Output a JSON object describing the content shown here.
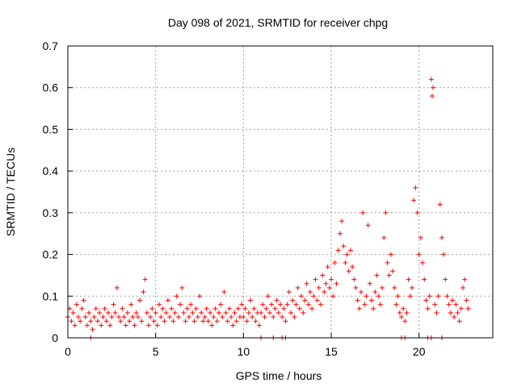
{
  "chart_data": {
    "type": "scatter",
    "title": "Day 098 of 2021, SRMTID for receiver chpg",
    "xlabel": "GPS time / hours",
    "ylabel": "SRMTID / TECUs",
    "xlim": [
      0,
      24.2
    ],
    "ylim": [
      0,
      0.7
    ],
    "x_ticks": [
      0,
      5,
      10,
      15,
      20
    ],
    "y_ticks": [
      0,
      0.1,
      0.2,
      0.3,
      0.4,
      0.5,
      0.6,
      0.7
    ],
    "x_tick_labels": [
      "0",
      "5",
      "10",
      "15",
      "20"
    ],
    "y_tick_labels": [
      "0",
      "0.1",
      "0.2",
      "0.3",
      "0.4",
      "0.5",
      "0.6",
      "0.7"
    ],
    "grid": true,
    "marker": "+",
    "color": "#ff0000",
    "series": [
      {
        "name": "SRMTID",
        "points": [
          [
            0.0,
            0.05
          ],
          [
            0.1,
            0.07
          ],
          [
            0.2,
            0.04
          ],
          [
            0.3,
            0.06
          ],
          [
            0.4,
            0.03
          ],
          [
            0.5,
            0.08
          ],
          [
            0.6,
            0.05
          ],
          [
            0.7,
            0.04
          ],
          [
            0.8,
            0.07
          ],
          [
            0.9,
            0.09
          ],
          [
            1.0,
            0.05
          ],
          [
            1.1,
            0.03
          ],
          [
            1.2,
            0.06
          ],
          [
            1.3,
            0.04
          ],
          [
            1.4,
            0.02
          ],
          [
            1.5,
            0.05
          ],
          [
            1.6,
            0.07
          ],
          [
            1.7,
            0.04
          ],
          [
            1.8,
            0.06
          ],
          [
            1.9,
            0.03
          ],
          [
            2.0,
            0.05
          ],
          [
            2.1,
            0.07
          ],
          [
            2.2,
            0.04
          ],
          [
            2.3,
            0.06
          ],
          [
            2.4,
            0.03
          ],
          [
            2.5,
            0.05
          ],
          [
            2.6,
            0.08
          ],
          [
            2.7,
            0.06
          ],
          [
            2.8,
            0.12
          ],
          [
            2.9,
            0.05
          ],
          [
            3.0,
            0.04
          ],
          [
            3.1,
            0.07
          ],
          [
            3.2,
            0.05
          ],
          [
            3.3,
            0.03
          ],
          [
            3.4,
            0.06
          ],
          [
            3.5,
            0.04
          ],
          [
            3.6,
            0.08
          ],
          [
            3.7,
            0.05
          ],
          [
            3.8,
            0.03
          ],
          [
            3.9,
            0.06
          ],
          [
            4.0,
            0.05
          ],
          [
            4.1,
            0.09
          ],
          [
            4.2,
            0.04
          ],
          [
            4.3,
            0.11
          ],
          [
            4.4,
            0.14
          ],
          [
            4.5,
            0.06
          ],
          [
            4.6,
            0.03
          ],
          [
            4.7,
            0.05
          ],
          [
            4.8,
            0.07
          ],
          [
            4.9,
            0.04
          ],
          [
            5.0,
            0.06
          ],
          [
            5.1,
            0.03
          ],
          [
            5.2,
            0.08
          ],
          [
            5.3,
            0.05
          ],
          [
            5.4,
            0.07
          ],
          [
            5.5,
            0.04
          ],
          [
            5.6,
            0.06
          ],
          [
            5.7,
            0.09
          ],
          [
            5.8,
            0.05
          ],
          [
            5.9,
            0.07
          ],
          [
            6.0,
            0.04
          ],
          [
            6.1,
            0.06
          ],
          [
            6.2,
            0.1
          ],
          [
            6.3,
            0.05
          ],
          [
            6.4,
            0.08
          ],
          [
            6.5,
            0.12
          ],
          [
            6.6,
            0.06
          ],
          [
            6.7,
            0.04
          ],
          [
            6.8,
            0.07
          ],
          [
            6.9,
            0.05
          ],
          [
            7.0,
            0.08
          ],
          [
            7.1,
            0.06
          ],
          [
            7.2,
            0.04
          ],
          [
            7.3,
            0.07
          ],
          [
            7.4,
            0.05
          ],
          [
            7.5,
            0.1
          ],
          [
            7.6,
            0.06
          ],
          [
            7.7,
            0.04
          ],
          [
            7.8,
            0.05
          ],
          [
            7.9,
            0.07
          ],
          [
            8.0,
            0.04
          ],
          [
            8.1,
            0.06
          ],
          [
            8.2,
            0.03
          ],
          [
            8.3,
            0.05
          ],
          [
            8.4,
            0.07
          ],
          [
            8.5,
            0.04
          ],
          [
            8.6,
            0.06
          ],
          [
            8.7,
            0.08
          ],
          [
            8.8,
            0.05
          ],
          [
            8.9,
            0.11
          ],
          [
            9.0,
            0.06
          ],
          [
            9.1,
            0.04
          ],
          [
            9.2,
            0.07
          ],
          [
            9.3,
            0.05
          ],
          [
            9.4,
            0.03
          ],
          [
            9.5,
            0.06
          ],
          [
            9.6,
            0.04
          ],
          [
            9.7,
            0.07
          ],
          [
            9.8,
            0.05
          ],
          [
            9.9,
            0.08
          ],
          [
            10.0,
            0.05
          ],
          [
            10.1,
            0.07
          ],
          [
            10.2,
            0.04
          ],
          [
            10.3,
            0.06
          ],
          [
            10.4,
            0.09
          ],
          [
            10.5,
            0.05
          ],
          [
            10.6,
            0.07
          ],
          [
            10.7,
            0.04
          ],
          [
            10.8,
            0.06
          ],
          [
            10.9,
            0.03
          ],
          [
            11.0,
            0.06
          ],
          [
            11.1,
            0.08
          ],
          [
            11.2,
            0.05
          ],
          [
            11.3,
            0.07
          ],
          [
            11.4,
            0.1
          ],
          [
            11.5,
            0.06
          ],
          [
            11.6,
            0.08
          ],
          [
            11.7,
            0.05
          ],
          [
            11.8,
            0.07
          ],
          [
            11.9,
            0.09
          ],
          [
            12.0,
            0.06
          ],
          [
            12.1,
            0.08
          ],
          [
            12.2,
            0.05
          ],
          [
            12.3,
            0.07
          ],
          [
            12.4,
            0.04
          ],
          [
            12.5,
            0.08
          ],
          [
            12.6,
            0.11
          ],
          [
            12.7,
            0.06
          ],
          [
            12.8,
            0.09
          ],
          [
            12.9,
            0.05
          ],
          [
            13.0,
            0.08
          ],
          [
            13.1,
            0.12
          ],
          [
            13.2,
            0.07
          ],
          [
            13.3,
            0.1
          ],
          [
            13.4,
            0.06
          ],
          [
            13.5,
            0.09
          ],
          [
            13.6,
            0.13
          ],
          [
            13.7,
            0.08
          ],
          [
            13.8,
            0.11
          ],
          [
            13.9,
            0.07
          ],
          [
            14.0,
            0.1
          ],
          [
            14.1,
            0.14
          ],
          [
            14.2,
            0.09
          ],
          [
            14.3,
            0.12
          ],
          [
            14.4,
            0.08
          ],
          [
            14.5,
            0.15
          ],
          [
            14.6,
            0.11
          ],
          [
            14.7,
            0.13
          ],
          [
            14.8,
            0.17
          ],
          [
            14.9,
            0.12
          ],
          [
            15.0,
            0.14
          ],
          [
            15.1,
            0.1
          ],
          [
            15.2,
            0.18
          ],
          [
            15.3,
            0.13
          ],
          [
            15.4,
            0.21
          ],
          [
            15.5,
            0.25
          ],
          [
            15.6,
            0.28
          ],
          [
            15.7,
            0.22
          ],
          [
            15.8,
            0.18
          ],
          [
            15.9,
            0.2
          ],
          [
            16.0,
            0.16
          ],
          [
            16.1,
            0.21
          ],
          [
            16.2,
            0.17
          ],
          [
            16.3,
            0.14
          ],
          [
            16.4,
            0.12
          ],
          [
            16.5,
            0.09
          ],
          [
            16.6,
            0.07
          ],
          [
            16.7,
            0.11
          ],
          [
            16.8,
            0.3
          ],
          [
            16.9,
            0.08
          ],
          [
            17.0,
            0.1
          ],
          [
            17.1,
            0.27
          ],
          [
            17.2,
            0.13
          ],
          [
            17.3,
            0.09
          ],
          [
            17.4,
            0.07
          ],
          [
            17.5,
            0.11
          ],
          [
            17.6,
            0.15
          ],
          [
            17.7,
            0.1
          ],
          [
            17.8,
            0.08
          ],
          [
            17.9,
            0.12
          ],
          [
            18.0,
            0.24
          ],
          [
            18.1,
            0.3
          ],
          [
            18.2,
            0.18
          ],
          [
            18.3,
            0.15
          ],
          [
            18.4,
            0.2
          ],
          [
            18.5,
            0.16
          ],
          [
            18.6,
            0.12
          ],
          [
            18.7,
            0.08
          ],
          [
            18.8,
            0.1
          ],
          [
            18.9,
            0.06
          ],
          [
            19.0,
            0.05
          ],
          [
            19.1,
            0.07
          ],
          [
            19.2,
            0.04
          ],
          [
            19.3,
            0.06
          ],
          [
            19.4,
            0.14
          ],
          [
            19.5,
            0.1
          ],
          [
            19.6,
            0.12
          ],
          [
            19.7,
            0.33
          ],
          [
            19.8,
            0.36
          ],
          [
            19.9,
            0.3
          ],
          [
            20.0,
            0.2
          ],
          [
            20.1,
            0.24
          ],
          [
            20.2,
            0.18
          ],
          [
            20.3,
            0.14
          ],
          [
            20.4,
            0.09
          ],
          [
            20.5,
            0.07
          ],
          [
            20.6,
            0.1
          ],
          [
            20.7,
            0.62
          ],
          [
            20.75,
            0.58
          ],
          [
            20.8,
            0.6
          ],
          [
            20.9,
            0.08
          ],
          [
            21.0,
            0.06
          ],
          [
            21.1,
            0.1
          ],
          [
            21.2,
            0.32
          ],
          [
            21.3,
            0.24
          ],
          [
            21.4,
            0.2
          ],
          [
            21.5,
            0.14
          ],
          [
            21.6,
            0.1
          ],
          [
            21.7,
            0.08
          ],
          [
            21.8,
            0.06
          ],
          [
            21.9,
            0.09
          ],
          [
            22.0,
            0.05
          ],
          [
            22.1,
            0.08
          ],
          [
            22.2,
            0.06
          ],
          [
            22.3,
            0.04
          ],
          [
            22.4,
            0.07
          ],
          [
            22.5,
            0.12
          ],
          [
            22.6,
            0.14
          ],
          [
            22.7,
            0.09
          ],
          [
            22.8,
            0.07
          ],
          [
            11.0,
            0.0
          ],
          [
            11.7,
            0.0
          ],
          [
            12.2,
            0.0
          ],
          [
            12.4,
            0.0
          ],
          [
            19.0,
            0.0
          ],
          [
            19.2,
            0.0
          ],
          [
            20.5,
            0.0
          ],
          [
            20.7,
            0.0
          ],
          [
            21.3,
            0.0
          ],
          [
            1.3,
            0.0
          ]
        ]
      }
    ]
  }
}
